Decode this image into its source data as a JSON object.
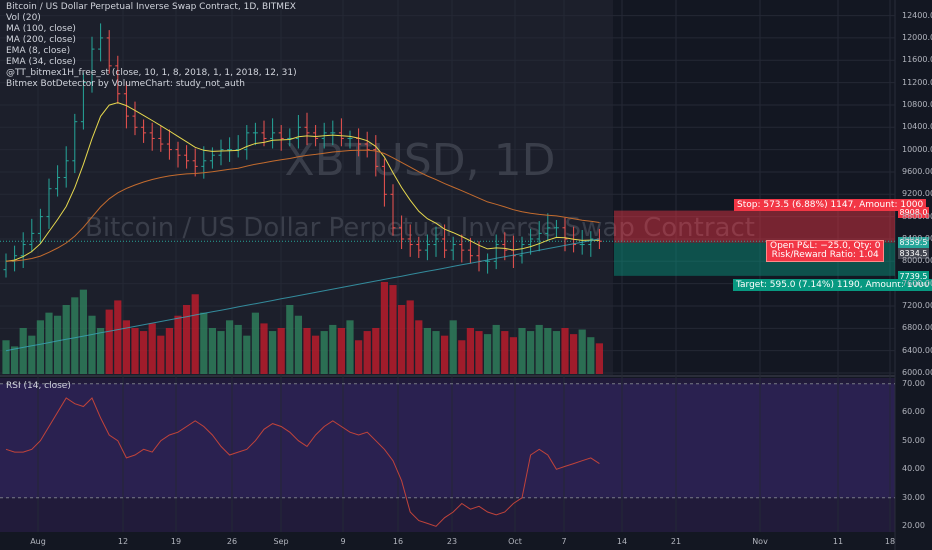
{
  "legend": {
    "title": "Bitcoin / US Dollar Perpetual Inverse Swap Contract, 1D, BITMEX",
    "items": [
      "Vol (20)",
      "MA (100, close)",
      "MA (200, close)",
      "EMA (8, close)",
      "EMA (34, close)",
      "@TT_bitmex1H_free_st (close, 10, 1, 8, 2018, 1, 1, 2018, 12, 31)",
      "Bitmex BotDetector by VolumeChart: study_not_auth"
    ]
  },
  "watermark": {
    "symbol": "XBTUSD, 1D",
    "name": "Bitcoin / US Dollar Perpetual Inverse Swap Contract"
  },
  "position": {
    "stop_label": "Stop: 573.5 (6.88%) 1147, Amount: 1000",
    "pnl_line1": "Open P&L: −25.0, Qty: 0",
    "pnl_line2": "Risk/Reward Ratio: 1.04",
    "target_label": "Target: 595.0 (7.14%) 1190, Amount: 1000",
    "stop_price": "8908.0",
    "last_price": "8359.5",
    "entry_price": "8334.5",
    "target_price": "7739.5"
  },
  "rsi_label": "RSI (14, close)",
  "colors": {
    "up": "#26a69a",
    "down": "#ef5350",
    "ema8": "#e6d84e",
    "ema34": "#c36b2e",
    "ma200": "#3aa6b9",
    "rsi": "#c0433a"
  },
  "chart_data": [
    {
      "type": "candlestick",
      "title": "Bitcoin / US Dollar Perpetual Inverse Swap Contract, 1D, BITMEX",
      "y_ticks": [
        "12400.00",
        "12000.00",
        "11600.00",
        "11200.00",
        "10800.00",
        "10400.00",
        "10000.00",
        "9600.00",
        "9200.00",
        "8800.00",
        "8400.00",
        "8000.00",
        "7600.00",
        "7200.00",
        "6800.00",
        "6400.00",
        "6000.00"
      ],
      "ylim": [
        6000,
        12500
      ],
      "x_ticks": [
        "Aug",
        "12",
        "19",
        "26",
        "Sep",
        "9",
        "16",
        "23",
        "Oct",
        "7",
        "14",
        "21",
        "Nov",
        "11",
        "18"
      ],
      "close_approx": [
        8000,
        8100,
        8300,
        8500,
        8800,
        9300,
        9500,
        9800,
        10500,
        11200,
        11800,
        12000,
        11500,
        11000,
        10600,
        10400,
        10300,
        10200,
        10100,
        10000,
        9900,
        9800,
        9700,
        9800,
        9900,
        10000,
        10000,
        10000,
        10300,
        10300,
        10200,
        10300,
        10200,
        10200,
        10400,
        10300,
        10200,
        10300,
        10300,
        10200,
        10200,
        10100,
        10000,
        9700,
        9200,
        8600,
        8400,
        8300,
        8200,
        8300,
        8400,
        8200,
        8300,
        8200,
        8100,
        8000,
        8000,
        8300,
        8200,
        8100,
        8300,
        8400,
        8500,
        8600,
        8600,
        8400,
        8300,
        8300,
        8400,
        8360
      ],
      "volume_approx": [
        22,
        18,
        30,
        25,
        35,
        40,
        38,
        45,
        50,
        55,
        38,
        30,
        42,
        48,
        35,
        30,
        28,
        33,
        25,
        30,
        38,
        45,
        52,
        40,
        30,
        28,
        35,
        32,
        25,
        40,
        33,
        28,
        30,
        45,
        38,
        30,
        25,
        28,
        32,
        30,
        35,
        22,
        28,
        30,
        60,
        58,
        45,
        48,
        35,
        30,
        28,
        25,
        35,
        22,
        30,
        28,
        26,
        32,
        28,
        24,
        30,
        28,
        32,
        30,
        28,
        30,
        26,
        29,
        24,
        20
      ]
    },
    {
      "type": "line",
      "title": "RSI (14, close)",
      "y_ticks": [
        "70.00",
        "60.00",
        "50.00",
        "40.00",
        "30.00",
        "20.00"
      ],
      "ylim": [
        18,
        72
      ],
      "levels": [
        70,
        30
      ],
      "values": [
        47,
        46,
        46,
        47,
        50,
        55,
        60,
        65,
        63,
        62,
        65,
        58,
        52,
        50,
        44,
        45,
        47,
        46,
        50,
        52,
        53,
        55,
        57,
        55,
        52,
        48,
        45,
        46,
        47,
        50,
        54,
        56,
        55,
        53,
        50,
        48,
        52,
        55,
        57,
        55,
        53,
        52,
        53,
        50,
        47,
        43,
        36,
        25,
        22,
        21,
        20,
        23,
        25,
        28,
        26,
        27,
        25,
        24,
        25,
        28,
        30,
        45,
        47,
        45,
        40,
        41,
        42,
        43,
        44,
        42
      ]
    }
  ]
}
